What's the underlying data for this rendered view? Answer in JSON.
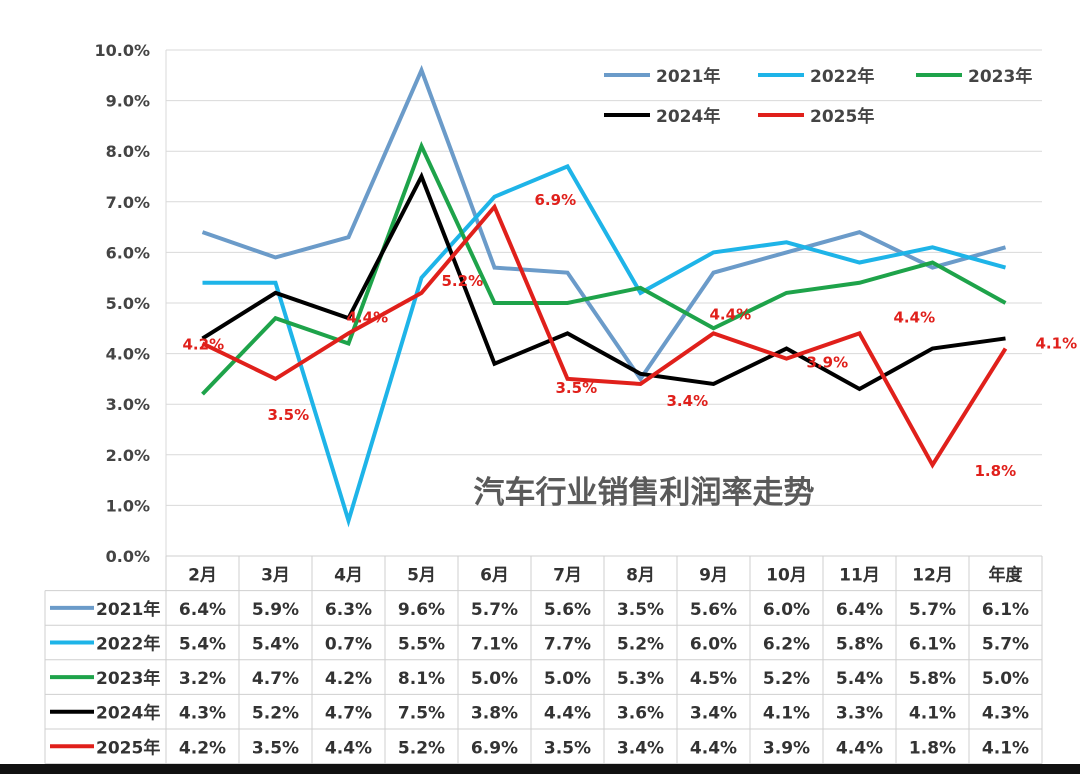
{
  "chart_data": {
    "type": "line",
    "title": "汽车行业销售利润率走势",
    "categories": [
      "2月",
      "3月",
      "4月",
      "5月",
      "6月",
      "7月",
      "8月",
      "9月",
      "10月",
      "11月",
      "12月",
      "年度"
    ],
    "ylim": [
      0,
      10
    ],
    "yticks": [
      "0.0%",
      "1.0%",
      "2.0%",
      "3.0%",
      "4.0%",
      "5.0%",
      "6.0%",
      "7.0%",
      "8.0%",
      "9.0%",
      "10.0%"
    ],
    "series": [
      {
        "name": "2021年",
        "color": "#6b9bc9",
        "values": [
          6.4,
          5.9,
          6.3,
          9.6,
          5.7,
          5.6,
          3.5,
          5.6,
          6.0,
          6.4,
          5.7,
          6.1
        ],
        "labels": [
          "6.4%",
          "5.9%",
          "6.3%",
          "9.6%",
          "5.7%",
          "5.6%",
          "3.5%",
          "5.6%",
          "6.0%",
          "6.4%",
          "5.7%",
          "6.1%"
        ]
      },
      {
        "name": "2022年",
        "color": "#1eb4e8",
        "values": [
          5.4,
          5.4,
          0.7,
          5.5,
          7.1,
          7.7,
          5.2,
          6.0,
          6.2,
          5.8,
          6.1,
          5.7
        ],
        "labels": [
          "5.4%",
          "5.4%",
          "0.7%",
          "5.5%",
          "7.1%",
          "7.7%",
          "5.2%",
          "6.0%",
          "6.2%",
          "5.8%",
          "6.1%",
          "5.7%"
        ]
      },
      {
        "name": "2023年",
        "color": "#1ea34a",
        "values": [
          3.2,
          4.7,
          4.2,
          8.1,
          5.0,
          5.0,
          5.3,
          4.5,
          5.2,
          5.4,
          5.8,
          5.0
        ],
        "labels": [
          "3.2%",
          "4.7%",
          "4.2%",
          "8.1%",
          "5.0%",
          "5.0%",
          "5.3%",
          "4.5%",
          "5.2%",
          "5.4%",
          "5.8%",
          "5.0%"
        ]
      },
      {
        "name": "2024年",
        "color": "#000000",
        "values": [
          4.3,
          5.2,
          4.7,
          7.5,
          3.8,
          4.4,
          3.6,
          3.4,
          4.1,
          3.3,
          4.1,
          4.3
        ],
        "labels": [
          "4.3%",
          "5.2%",
          "4.7%",
          "7.5%",
          "3.8%",
          "4.4%",
          "3.6%",
          "3.4%",
          "4.1%",
          "3.3%",
          "4.1%",
          "4.3%"
        ]
      },
      {
        "name": "2025年",
        "color": "#e0201b",
        "values": [
          4.2,
          3.5,
          4.4,
          5.2,
          6.9,
          3.5,
          3.4,
          4.4,
          3.9,
          4.4,
          1.8,
          4.1
        ],
        "labels": [
          "4.2%",
          "3.5%",
          "4.4%",
          "5.2%",
          "6.9%",
          "3.5%",
          "3.4%",
          "4.4%",
          "3.9%",
          "4.4%",
          "1.8%",
          "4.1%"
        ]
      }
    ],
    "data_labels_series": "2025年",
    "grid": true,
    "legend": "top-right",
    "data_table": true
  }
}
